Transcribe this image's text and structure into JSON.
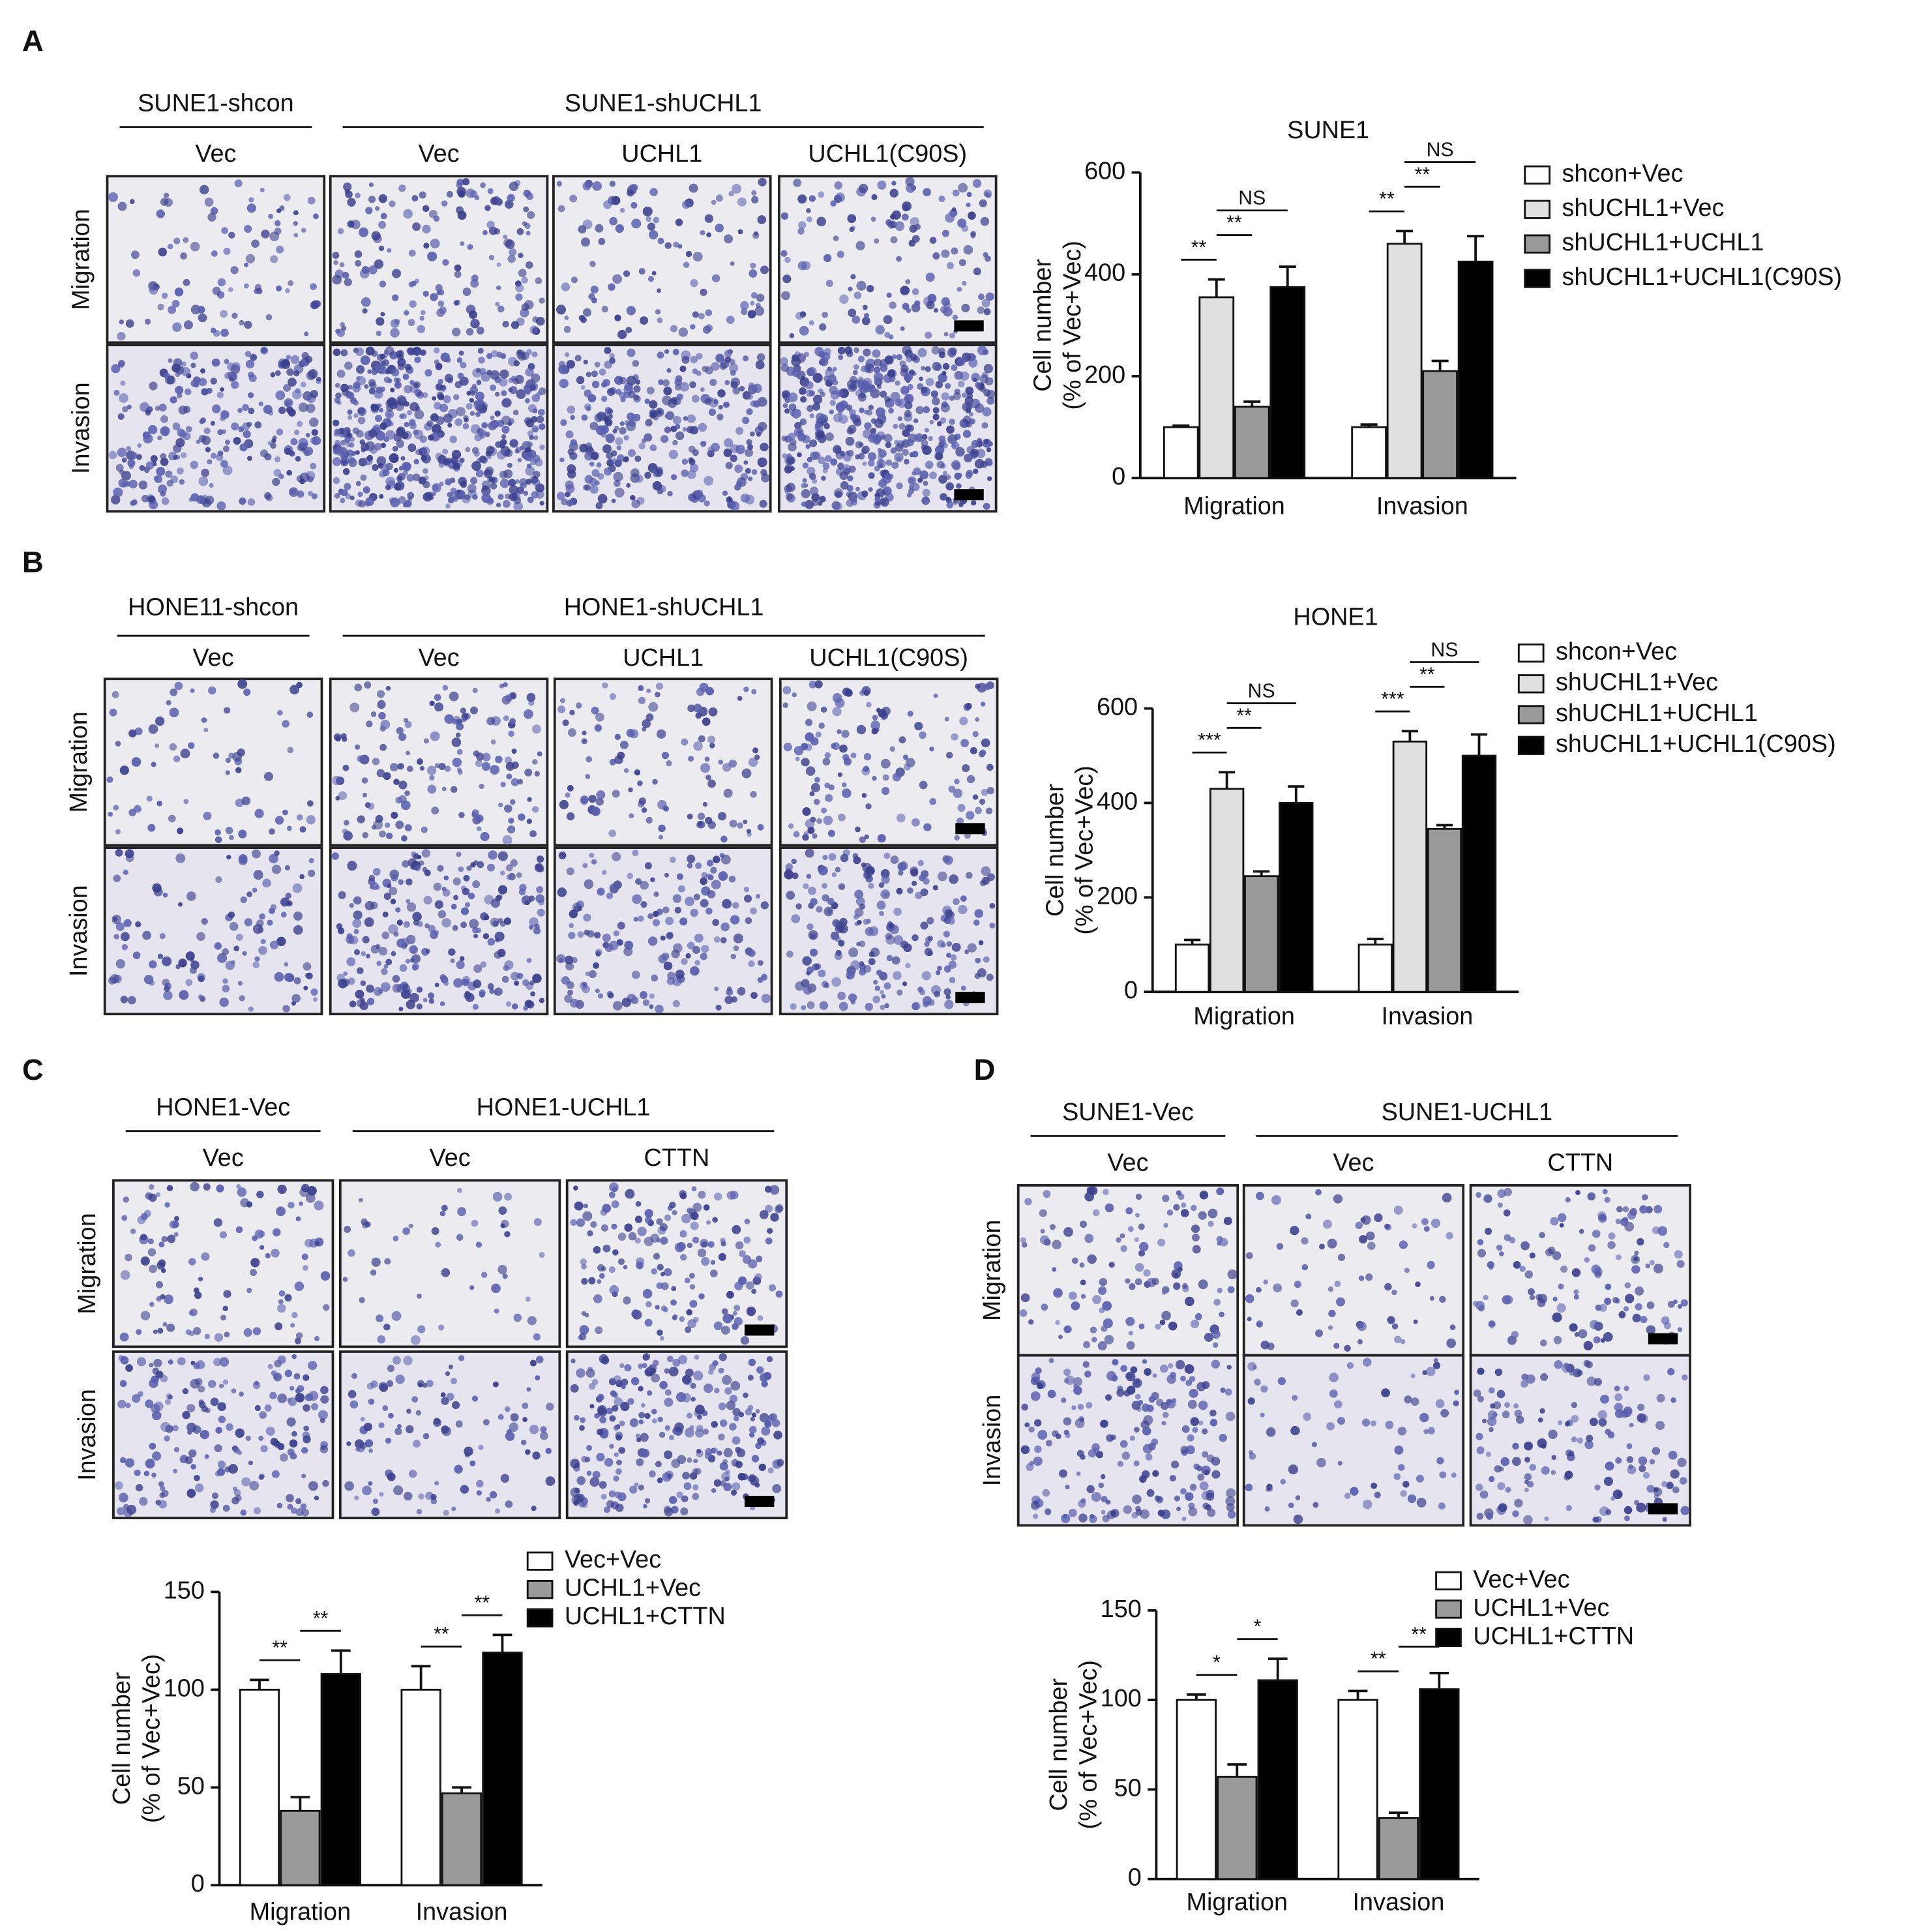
{
  "panels": [
    {
      "letter": "A",
      "groups": [
        "SUNE1-shcon",
        "SUNE1-shUCHL1"
      ],
      "columns": [
        "Vec",
        "Vec",
        "UCHL1",
        "UCHL1(C90S)"
      ],
      "rows": [
        "Migration",
        "Invasion"
      ]
    },
    {
      "letter": "B",
      "groups": [
        "HONE11-shcon",
        "HONE1-shUCHL1"
      ],
      "columns": [
        "Vec",
        "Vec",
        "UCHL1",
        "UCHL1(C90S)"
      ],
      "rows": [
        "Migration",
        "Invasion"
      ]
    },
    {
      "letter": "C",
      "groups": [
        "HONE1-Vec",
        "HONE1-UCHL1"
      ],
      "columns": [
        "Vec",
        "Vec",
        "CTTN"
      ],
      "rows": [
        "Migration",
        "Invasion"
      ]
    },
    {
      "letter": "D",
      "groups": [
        "SUNE1-Vec",
        "SUNE1-UCHL1"
      ],
      "columns": [
        "Vec",
        "Vec",
        "CTTN"
      ],
      "rows": [
        "Migration",
        "Invasion"
      ]
    }
  ],
  "chart_data": [
    {
      "type": "bar",
      "title": "SUNE1",
      "ylabel": [
        "Cell number",
        "(% of Vec+Vec)"
      ],
      "categories": [
        "Migration",
        "Invasion"
      ],
      "ylim": [
        0,
        600
      ],
      "yticks": [
        0,
        200,
        400,
        600
      ],
      "series": [
        {
          "name": "shcon+Vec",
          "color": "#ffffff",
          "values": [
            100,
            100
          ],
          "errors": [
            3,
            5
          ]
        },
        {
          "name": "shUCHL1+Vec",
          "color": "#e0e0e0",
          "values": [
            355,
            460
          ],
          "errors": [
            35,
            25
          ]
        },
        {
          "name": "shUCHL1+UCHL1",
          "color": "#9a9a9a",
          "values": [
            140,
            210
          ],
          "errors": [
            10,
            20
          ]
        },
        {
          "name": "shUCHL1+UCHL1(C90S)",
          "color": "#000000",
          "values": [
            375,
            425
          ],
          "errors": [
            40,
            50
          ]
        }
      ],
      "annotations": [
        {
          "text": "**",
          "category": 0,
          "from": 0,
          "to": 1
        },
        {
          "text": "**",
          "category": 0,
          "from": 1,
          "to": 2
        },
        {
          "text": "NS",
          "category": 0,
          "from": 1,
          "to": 3
        },
        {
          "text": "**",
          "category": 1,
          "from": 0,
          "to": 1
        },
        {
          "text": "**",
          "category": 1,
          "from": 1,
          "to": 2
        },
        {
          "text": "NS",
          "category": 1,
          "from": 1,
          "to": 3
        }
      ]
    },
    {
      "type": "bar",
      "title": "HONE1",
      "ylabel": [
        "Cell number",
        "(% of Vec+Vec)"
      ],
      "categories": [
        "Migration",
        "Invasion"
      ],
      "ylim": [
        0,
        600
      ],
      "yticks": [
        0,
        200,
        400,
        600
      ],
      "series": [
        {
          "name": "shcon+Vec",
          "color": "#ffffff",
          "values": [
            100,
            100
          ],
          "errors": [
            10,
            12
          ]
        },
        {
          "name": "shUCHL1+Vec",
          "color": "#e0e0e0",
          "values": [
            430,
            530
          ],
          "errors": [
            35,
            22
          ]
        },
        {
          "name": "shUCHL1+UCHL1",
          "color": "#9a9a9a",
          "values": [
            245,
            345
          ],
          "errors": [
            10,
            8
          ]
        },
        {
          "name": "shUCHL1+UCHL1(C90S)",
          "color": "#000000",
          "values": [
            400,
            500
          ],
          "errors": [
            35,
            45
          ]
        }
      ],
      "annotations": [
        {
          "text": "***",
          "category": 0,
          "from": 0,
          "to": 1
        },
        {
          "text": "**",
          "category": 0,
          "from": 1,
          "to": 2
        },
        {
          "text": "NS",
          "category": 0,
          "from": 1,
          "to": 3
        },
        {
          "text": "***",
          "category": 1,
          "from": 0,
          "to": 1
        },
        {
          "text": "**",
          "category": 1,
          "from": 1,
          "to": 2
        },
        {
          "text": "NS",
          "category": 1,
          "from": 1,
          "to": 3
        }
      ]
    },
    {
      "type": "bar",
      "ylabel": [
        "Cell number",
        "(% of Vec+Vec)"
      ],
      "categories": [
        "Migration",
        "Invasion"
      ],
      "ylim": [
        0,
        150
      ],
      "yticks": [
        0,
        50,
        100,
        150
      ],
      "series": [
        {
          "name": "Vec+Vec",
          "color": "#ffffff",
          "values": [
            100,
            100
          ],
          "errors": [
            5,
            12
          ]
        },
        {
          "name": "UCHL1+Vec",
          "color": "#9a9a9a",
          "values": [
            38,
            47
          ],
          "errors": [
            7,
            3
          ]
        },
        {
          "name": "UCHL1+CTTN",
          "color": "#000000",
          "values": [
            108,
            119
          ],
          "errors": [
            12,
            9
          ]
        }
      ],
      "annotations": [
        {
          "text": "**",
          "category": 0,
          "from": 0,
          "to": 1
        },
        {
          "text": "**",
          "category": 0,
          "from": 1,
          "to": 2
        },
        {
          "text": "**",
          "category": 1,
          "from": 0,
          "to": 1
        },
        {
          "text": "**",
          "category": 1,
          "from": 1,
          "to": 2
        }
      ]
    },
    {
      "type": "bar",
      "ylabel": [
        "Cell number",
        "(% of Vec+Vec)"
      ],
      "categories": [
        "Migration",
        "Invasion"
      ],
      "ylim": [
        0,
        150
      ],
      "yticks": [
        0,
        50,
        100,
        150
      ],
      "series": [
        {
          "name": "Vec+Vec",
          "color": "#ffffff",
          "values": [
            100,
            100
          ],
          "errors": [
            3,
            5
          ]
        },
        {
          "name": "UCHL1+Vec",
          "color": "#9a9a9a",
          "values": [
            57,
            34
          ],
          "errors": [
            7,
            3
          ]
        },
        {
          "name": "UCHL1+CTTN",
          "color": "#000000",
          "values": [
            111,
            106
          ],
          "errors": [
            12,
            9
          ]
        }
      ],
      "annotations": [
        {
          "text": "*",
          "category": 0,
          "from": 0,
          "to": 1
        },
        {
          "text": "*",
          "category": 0,
          "from": 1,
          "to": 2
        },
        {
          "text": "**",
          "category": 1,
          "from": 0,
          "to": 1
        },
        {
          "text": "**",
          "category": 1,
          "from": 1,
          "to": 2
        }
      ]
    }
  ]
}
